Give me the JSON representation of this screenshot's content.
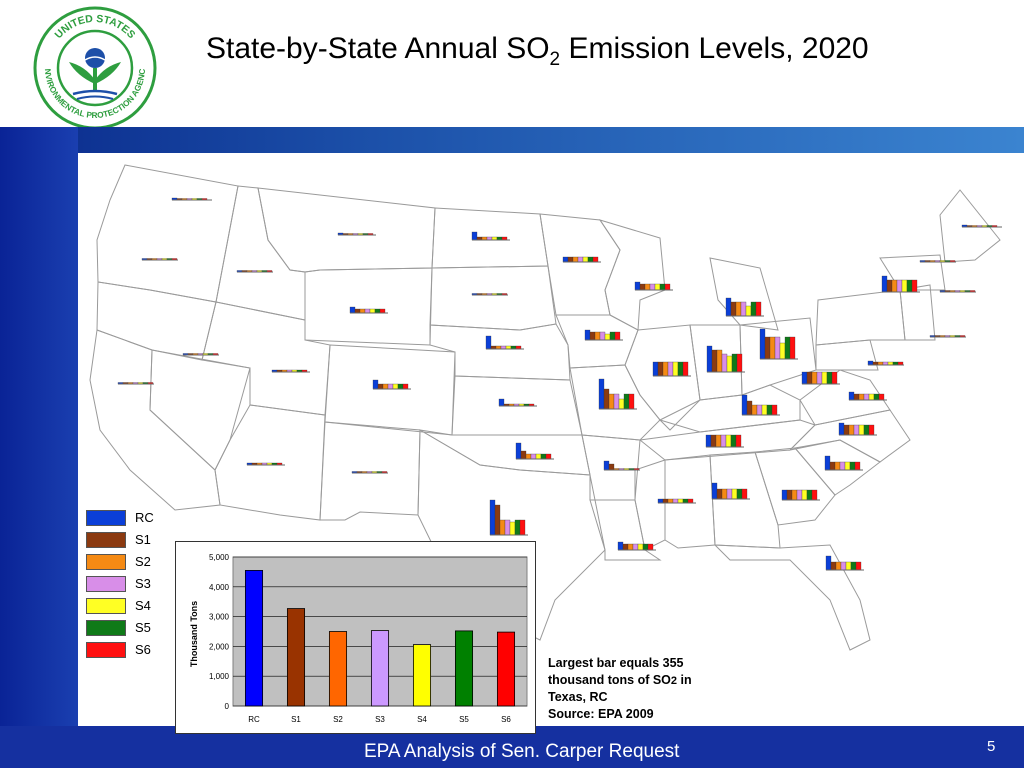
{
  "slide": {
    "title_main": "State-by-State Annual SO",
    "title_sub": "2",
    "title_rest": " Emission Levels, 2020",
    "footer": "EPA Analysis of Sen. Carper Request",
    "page_number": "5"
  },
  "logo": {
    "text": "UNITED STATES ENVIRONMENTAL PROTECTION AGENCY",
    "color": "#2e9e3f",
    "accent": "#1d4fa8"
  },
  "legend": {
    "items": [
      {
        "label": "RC",
        "color": "#0b3fd8"
      },
      {
        "label": "S1",
        "color": "#8b3a10"
      },
      {
        "label": "S2",
        "color": "#f58a14"
      },
      {
        "label": "S3",
        "color": "#d88ee8"
      },
      {
        "label": "S4",
        "color": "#ffff24"
      },
      {
        "label": "S5",
        "color": "#0f7a18"
      },
      {
        "label": "S6",
        "color": "#ff1010"
      }
    ]
  },
  "note": {
    "line1": "Largest bar equals 355",
    "line2_pre": "thousand tons of SO",
    "line2_sub": "2",
    "line2_post": " in",
    "line3": "Texas, RC",
    "line4": "Source: EPA 2009"
  },
  "chart_data": {
    "type": "bar",
    "title": "",
    "xlabel": "",
    "ylabel": "Thousand Tons",
    "categories": [
      "RC",
      "S1",
      "S2",
      "S3",
      "S4",
      "S5",
      "S6"
    ],
    "values": [
      4550,
      3270,
      2500,
      2530,
      2060,
      2520,
      2480
    ],
    "colors": [
      "#0000ff",
      "#993300",
      "#ff6600",
      "#cc99ff",
      "#ffff00",
      "#008000",
      "#ff0000"
    ],
    "ylim": [
      0,
      5000
    ],
    "yticks": [
      0,
      1000,
      2000,
      3000,
      4000,
      5000
    ],
    "ytick_labels": [
      "0",
      "1,000",
      "2,000",
      "3,000",
      "4,000",
      "5,000"
    ],
    "grid": true,
    "plot_background": "#c0c0c0"
  }
}
